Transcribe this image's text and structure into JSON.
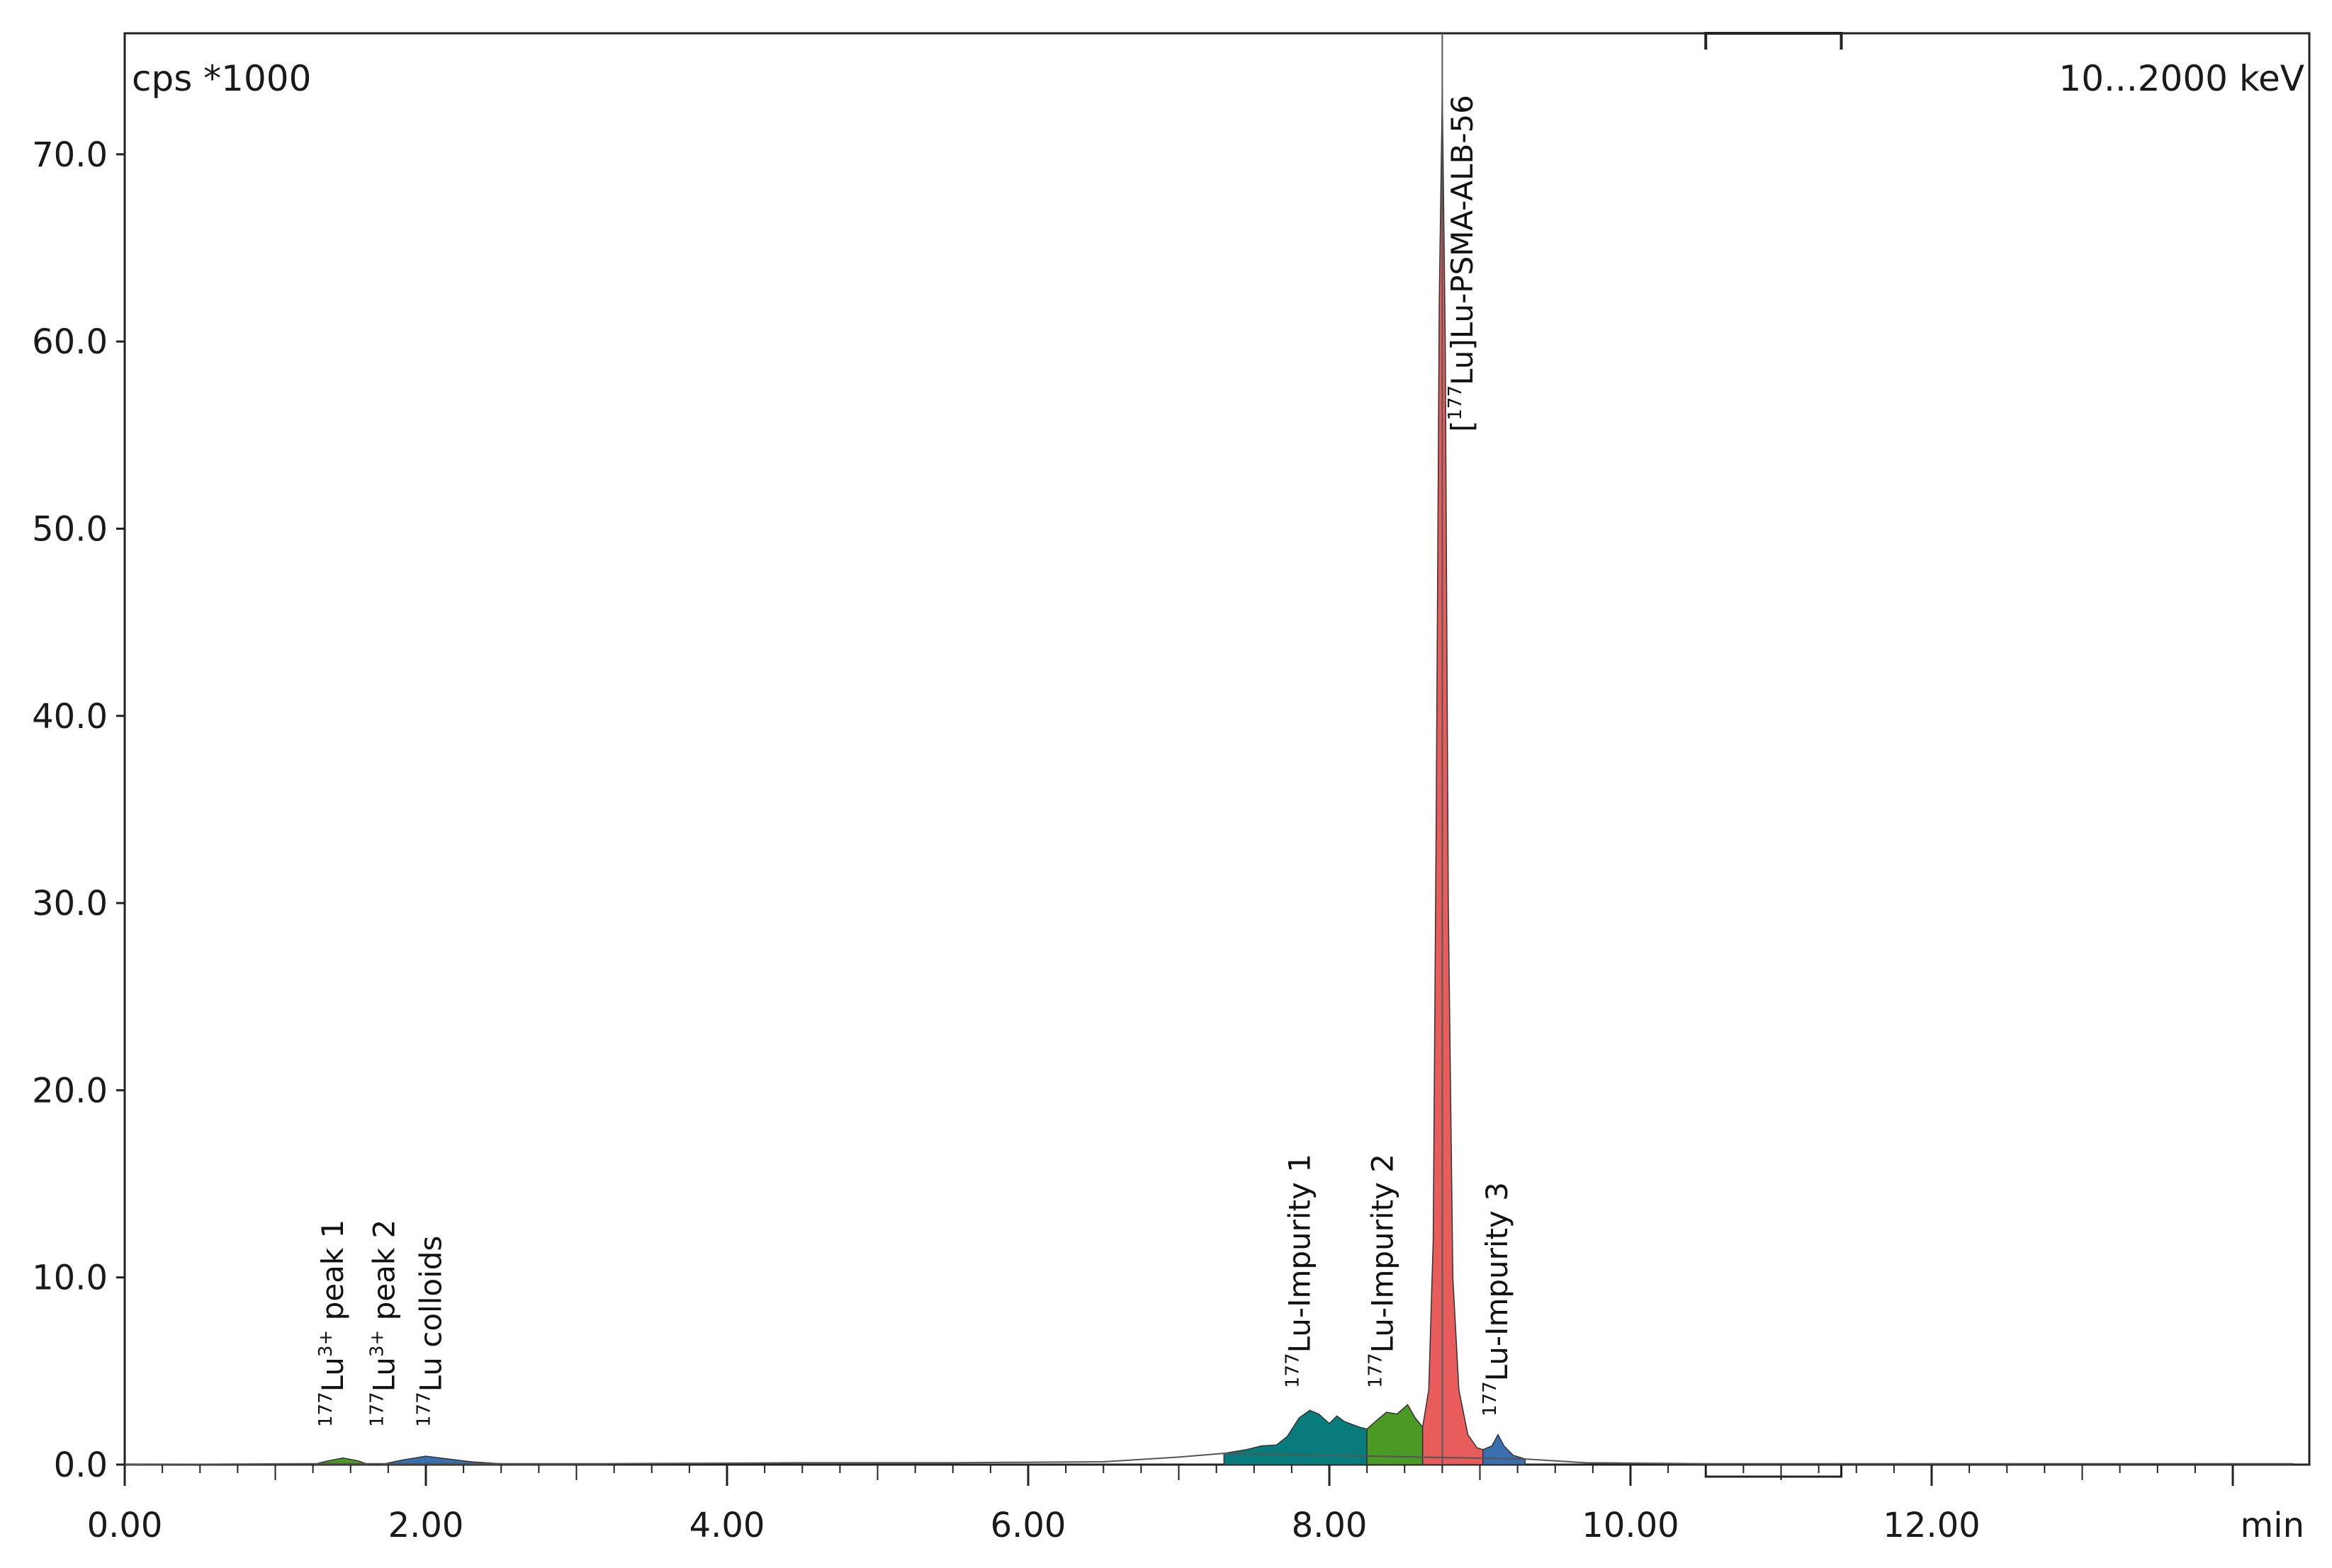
{
  "chart_data": {
    "type": "area",
    "ylabel": "cps *1000",
    "xlabel": "min",
    "energy_window": "10...2000 keV",
    "xlim": [
      0,
      14.4
    ],
    "ylim": [
      0,
      76
    ],
    "x_ticks": [
      "0.00",
      "2.00",
      "4.00",
      "6.00",
      "8.00",
      "10.00",
      "12.00"
    ],
    "x_tick_values": [
      0,
      2,
      4,
      6,
      8,
      10,
      12
    ],
    "y_ticks": [
      "0.0",
      "10.0",
      "20.0",
      "30.0",
      "40.0",
      "50.0",
      "60.0",
      "70.0"
    ],
    "y_tick_values": [
      0,
      10,
      20,
      30,
      40,
      50,
      60,
      70
    ],
    "baseline_trace": [
      [
        0.0,
        0.0
      ],
      [
        1.2,
        0.05
      ],
      [
        3.2,
        0.05
      ],
      [
        4.5,
        0.1
      ],
      [
        5.5,
        0.1
      ],
      [
        6.5,
        0.15
      ],
      [
        7.0,
        0.4
      ],
      [
        7.3,
        0.6
      ],
      [
        9.3,
        0.3
      ],
      [
        9.7,
        0.1
      ],
      [
        10.5,
        0.05
      ],
      [
        12.0,
        0.05
      ],
      [
        14.4,
        0.05
      ]
    ],
    "peaks": [
      {
        "label_iso": "177",
        "label_main": "Lu",
        "label_sup": "3+",
        "label_tail": " peak 1",
        "color": "#4a9a25",
        "label_x": 1.45,
        "points": [
          [
            1.25,
            0.0
          ],
          [
            1.35,
            0.2
          ],
          [
            1.45,
            0.35
          ],
          [
            1.55,
            0.2
          ],
          [
            1.62,
            0.0
          ]
        ]
      },
      {
        "label_iso": "177",
        "label_main": "Lu",
        "label_sup": "3+",
        "label_tail": " peak 2",
        "color": "#3a6fb0",
        "label_x": 1.79,
        "points": [
          [
            1.7,
            0.0
          ],
          [
            1.85,
            0.25
          ],
          [
            2.0,
            0.45
          ],
          [
            2.15,
            0.3
          ],
          [
            2.3,
            0.15
          ],
          [
            2.5,
            0.05
          ],
          [
            2.6,
            0.0
          ]
        ]
      },
      {
        "label_iso": "177",
        "label_main": "Lu colloids",
        "label_sup": "",
        "label_tail": "",
        "color": "#3a6fb0",
        "label_x": 2.1,
        "points": [
          [
            2.6,
            0.0
          ],
          [
            3.2,
            0.05
          ],
          [
            3.2,
            0.0
          ]
        ]
      },
      {
        "label_iso": "177",
        "label_main": "Lu-Impurity 1",
        "label_sup": "",
        "label_tail": "",
        "color": "#087c7c",
        "label_x": 7.87,
        "points": [
          [
            7.3,
            0.0
          ],
          [
            7.3,
            0.6
          ],
          [
            7.45,
            0.8
          ],
          [
            7.55,
            1.0
          ],
          [
            7.65,
            1.05
          ],
          [
            7.72,
            1.5
          ],
          [
            7.8,
            2.5
          ],
          [
            7.87,
            2.9
          ],
          [
            7.93,
            2.7
          ],
          [
            8.0,
            2.2
          ],
          [
            8.05,
            2.6
          ],
          [
            8.1,
            2.3
          ],
          [
            8.2,
            2.0
          ],
          [
            8.25,
            1.9
          ],
          [
            8.25,
            0.0
          ]
        ]
      },
      {
        "label_iso": "177",
        "label_main": "Lu-Impurity 2",
        "label_sup": "",
        "label_tail": "",
        "color": "#4a9a25",
        "label_x": 8.42,
        "points": [
          [
            8.25,
            0.0
          ],
          [
            8.25,
            1.9
          ],
          [
            8.32,
            2.4
          ],
          [
            8.38,
            2.8
          ],
          [
            8.45,
            2.7
          ],
          [
            8.52,
            3.2
          ],
          [
            8.57,
            2.5
          ],
          [
            8.62,
            2.0
          ],
          [
            8.62,
            0.0
          ]
        ]
      },
      {
        "label_iso": "177",
        "label_main": "Lu]Lu-PSMA-ALB-56",
        "label_sup": "",
        "label_tail": "",
        "bracket": true,
        "color": "#e85c5c",
        "label_x": 8.95,
        "points": [
          [
            8.62,
            0.0
          ],
          [
            8.62,
            2.0
          ],
          [
            8.66,
            4.0
          ],
          [
            8.69,
            12.0
          ],
          [
            8.71,
            35.0
          ],
          [
            8.73,
            62.0
          ],
          [
            8.75,
            73.5
          ],
          [
            8.77,
            60.0
          ],
          [
            8.79,
            30.0
          ],
          [
            8.82,
            10.0
          ],
          [
            8.86,
            4.0
          ],
          [
            8.92,
            1.6
          ],
          [
            8.98,
            0.9
          ],
          [
            9.02,
            0.8
          ],
          [
            9.02,
            0.0
          ]
        ]
      },
      {
        "label_iso": "177",
        "label_main": "Lu-Impurity 3",
        "label_sup": "",
        "label_tail": "",
        "color": "#3a6fb0",
        "label_x": 9.18,
        "points": [
          [
            9.02,
            0.0
          ],
          [
            9.02,
            0.8
          ],
          [
            9.08,
            1.0
          ],
          [
            9.12,
            1.6
          ],
          [
            9.16,
            1.0
          ],
          [
            9.22,
            0.5
          ],
          [
            9.3,
            0.3
          ],
          [
            9.3,
            0.0
          ]
        ]
      }
    ],
    "marker_x": 8.75,
    "top_bracket": [
      10.5,
      11.4
    ],
    "bottom_bracket": [
      10.5,
      11.4
    ],
    "grid": false
  }
}
